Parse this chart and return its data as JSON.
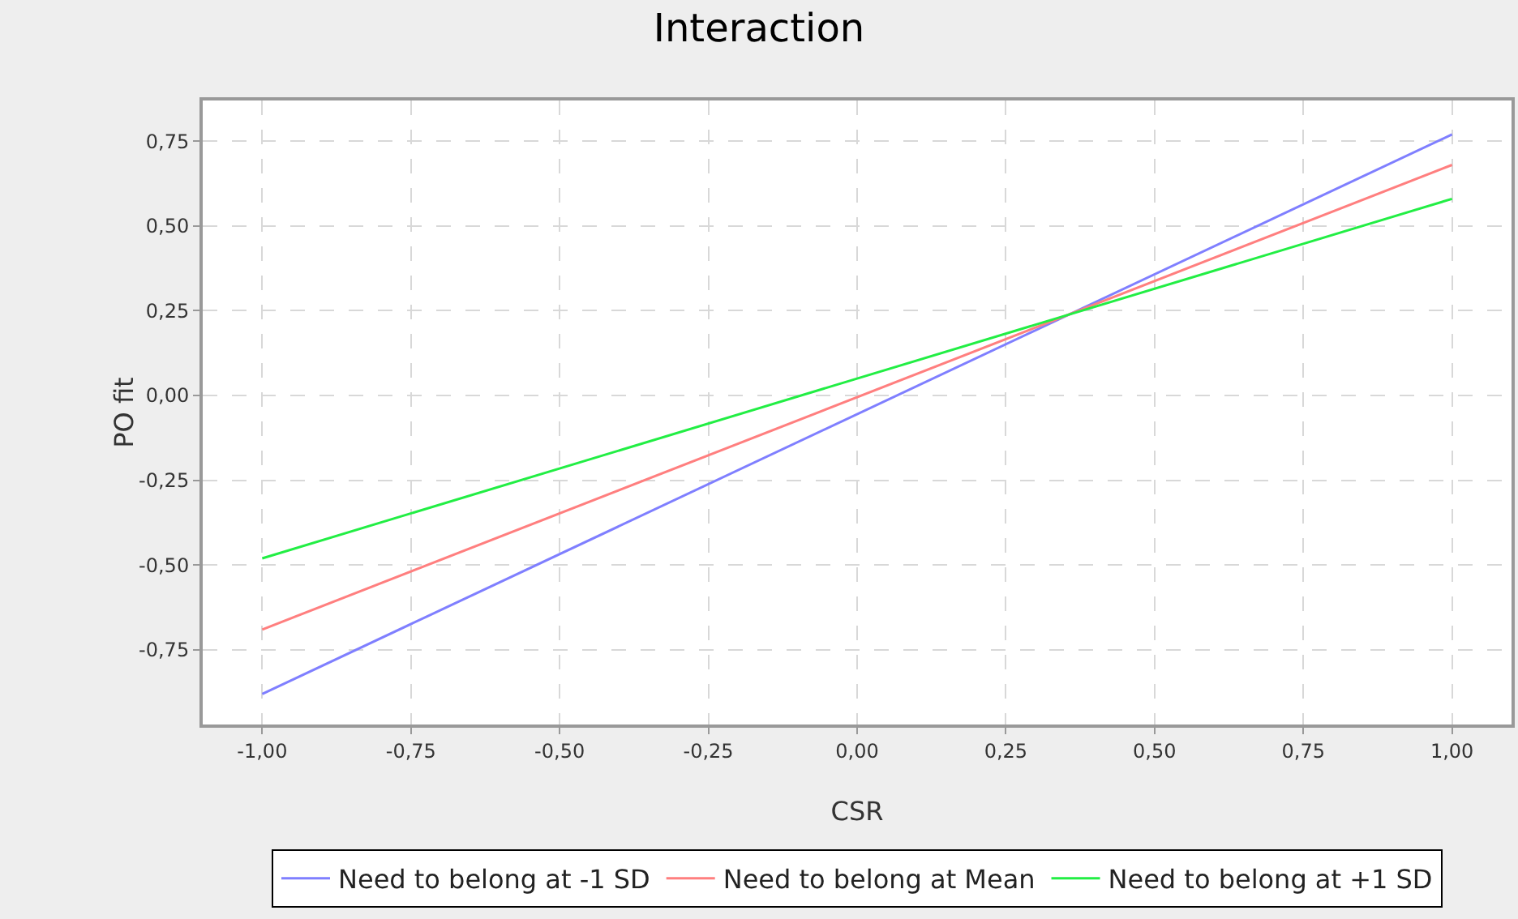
{
  "chart_data": {
    "type": "line",
    "title": "Interaction",
    "xlabel": "CSR",
    "ylabel": "PO fit",
    "x": [
      -1,
      1
    ],
    "series": [
      {
        "name": "Need to belong at -1 SD",
        "color": "#7f7fff",
        "values": [
          -0.88,
          0.77
        ]
      },
      {
        "name": "Need to belong at Mean",
        "color": "#ff7f7f",
        "values": [
          -0.69,
          0.68
        ]
      },
      {
        "name": "Need to belong at +1 SD",
        "color": "#22ee44",
        "values": [
          -0.48,
          0.58
        ]
      }
    ],
    "xlim": [
      -1.1,
      1.1
    ],
    "ylim": [
      -0.97,
      0.87
    ],
    "xticks": [
      {
        "value": -1,
        "label": "-1,00"
      },
      {
        "value": -0.75,
        "label": "-0,75"
      },
      {
        "value": -0.5,
        "label": "-0,50"
      },
      {
        "value": -0.25,
        "label": "-0,25"
      },
      {
        "value": 0,
        "label": "0,00"
      },
      {
        "value": 0.25,
        "label": "0,25"
      },
      {
        "value": 0.5,
        "label": "0,50"
      },
      {
        "value": 0.75,
        "label": "0,75"
      },
      {
        "value": 1,
        "label": "1,00"
      }
    ],
    "yticks": [
      {
        "value": -0.75,
        "label": "-0,75"
      },
      {
        "value": -0.5,
        "label": "-0,50"
      },
      {
        "value": -0.25,
        "label": "-0,25"
      },
      {
        "value": 0,
        "label": "0,00"
      },
      {
        "value": 0.25,
        "label": "0,25"
      },
      {
        "value": 0.5,
        "label": "0,50"
      },
      {
        "value": 0.75,
        "label": "0,75"
      }
    ],
    "grid": true,
    "legend": "bottom",
    "marker": "none",
    "line_style": "solid"
  }
}
